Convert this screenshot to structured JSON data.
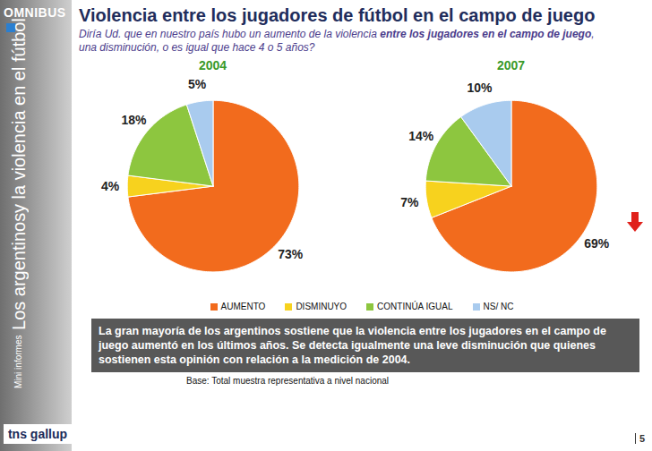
{
  "page": {
    "title": "Violencia entre los jugadores de fútbol en el campo de juego",
    "subtitle": "Diría Ud. que en nuestro país hubo un aumento de la violencia entre los jugadores en el campo de juego, una disminución, o es igual que hace 4 o 5 años?",
    "subtitle_emphasis": "entre los jugadores en el campo de juego",
    "caption": "La gran mayoría de los argentinos sostiene que la violencia entre los jugadores en el campo de juego aumentó en los últimos años. Se detecta igualmente una leve disminución que quienes sostienen esta opinión con relación a la medición de 2004.",
    "base": "Base: Total muestra representativa a nivel nacional",
    "page_number": "5",
    "sidebar": {
      "logo": "OMNIBUS",
      "series": "Mini informes",
      "heading": "Los argentinos",
      "subheading": "y la violencia en el fútbol",
      "brand": "tns gallup"
    }
  },
  "chart_data": [
    {
      "type": "pie",
      "title": "2004",
      "categories": [
        "AUMENTO",
        "DISMINUYO",
        "CONTINÚA IGUAL",
        "NS/ NC"
      ],
      "values": [
        73,
        4,
        18,
        5
      ],
      "value_labels": [
        "73%",
        "4%",
        "18%",
        "5%"
      ],
      "colors": [
        "#f26b1d",
        "#f7d21e",
        "#8dc63f",
        "#a9cbee"
      ],
      "data_labels": true,
      "legend": "bottom"
    },
    {
      "type": "pie",
      "title": "2007",
      "categories": [
        "AUMENTO",
        "DISMINUYO",
        "CONTINÚA IGUAL",
        "NS/ NC"
      ],
      "values": [
        69,
        7,
        14,
        10
      ],
      "value_labels": [
        "69%",
        "7%",
        "14%",
        "10%"
      ],
      "colors": [
        "#f26b1d",
        "#f7d21e",
        "#8dc63f",
        "#a9cbee"
      ],
      "data_labels": true,
      "legend": "bottom"
    }
  ]
}
